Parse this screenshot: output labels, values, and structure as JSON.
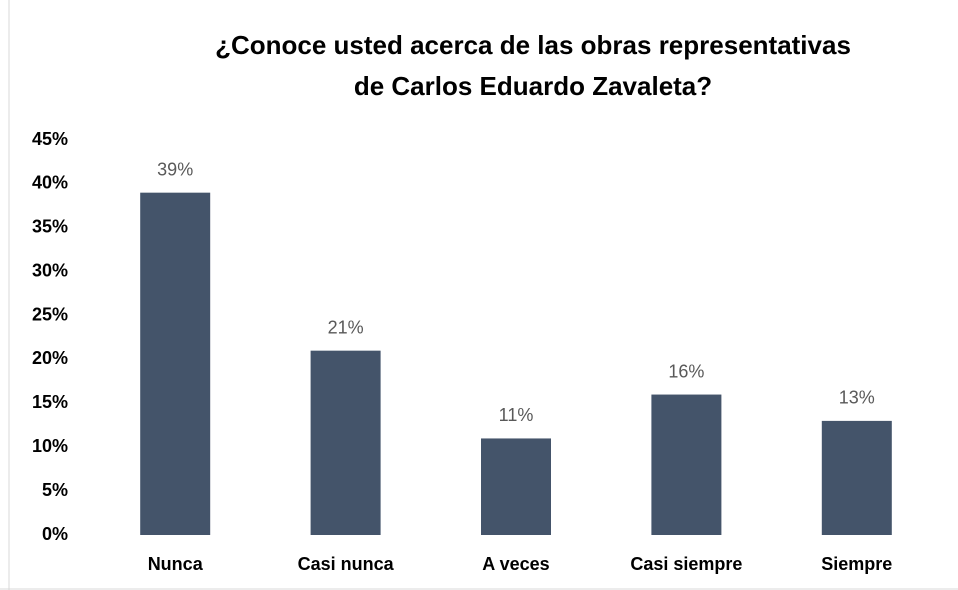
{
  "chart_data": {
    "type": "bar",
    "title": [
      "¿Conoce usted acerca de las obras representativas",
      "de Carlos Eduardo Zavaleta?"
    ],
    "categories": [
      "Nunca",
      "Casi nunca",
      "A veces",
      "Casi siempre",
      "Siempre"
    ],
    "values": [
      39,
      21,
      11,
      16,
      13
    ],
    "value_labels": [
      "39%",
      "21%",
      "11%",
      "16%",
      "13%"
    ],
    "color": "#44546a",
    "ylim": [
      0,
      45
    ],
    "yticks": [
      {
        "value": 0,
        "label": "0%"
      },
      {
        "value": 5,
        "label": "5%"
      },
      {
        "value": 10,
        "label": "10%"
      },
      {
        "value": 15,
        "label": "15%"
      },
      {
        "value": 20,
        "label": "20%"
      },
      {
        "value": 25,
        "label": "25%"
      },
      {
        "value": 30,
        "label": "30%"
      },
      {
        "value": 35,
        "label": "35%"
      },
      {
        "value": 40,
        "label": "40%"
      },
      {
        "value": 45,
        "label": "45%"
      }
    ],
    "grid": false
  }
}
